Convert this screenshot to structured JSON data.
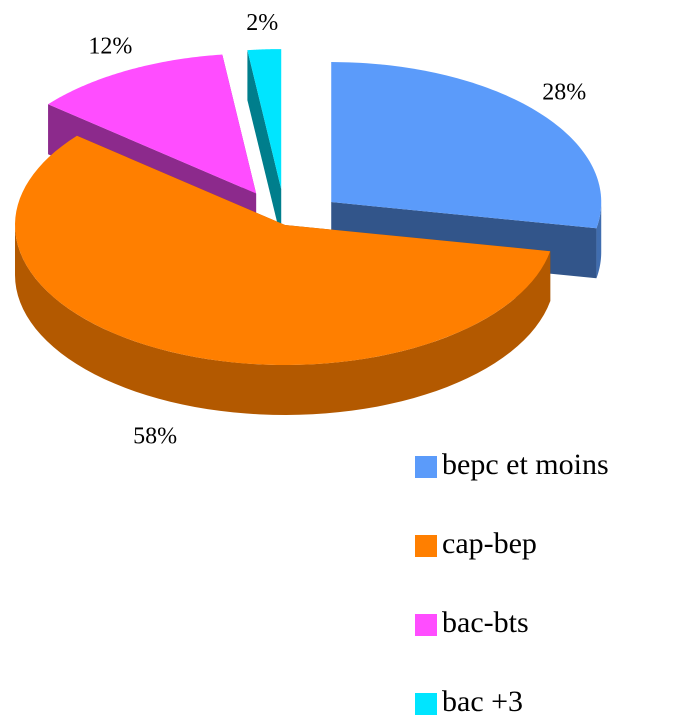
{
  "chart_data": {
    "type": "pie",
    "categories": [
      "bepc et moins",
      "cap-bep",
      "bac-bts",
      "bac +3"
    ],
    "values": [
      28,
      58,
      12,
      2
    ],
    "value_labels": [
      "28%",
      "58%",
      "12%",
      "2%"
    ],
    "colors": [
      "#5b9bfa",
      "#ff7f00",
      "#ff4dff",
      "#00e5ff"
    ],
    "legend": "right"
  }
}
